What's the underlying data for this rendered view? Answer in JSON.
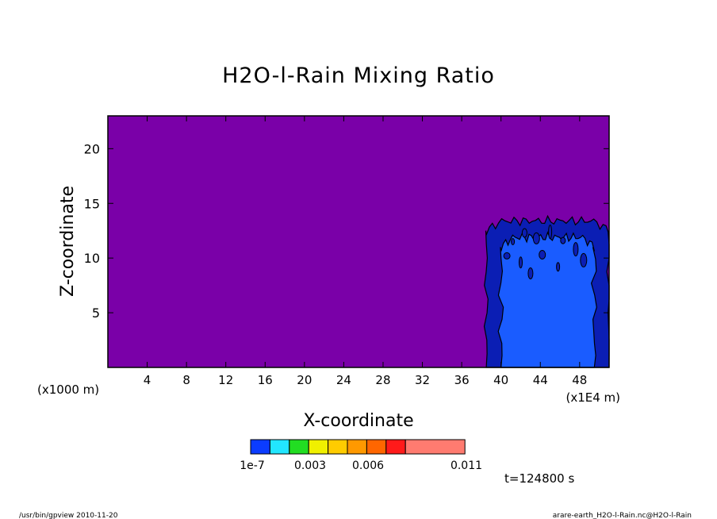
{
  "chart_data": {
    "type": "heatmap",
    "title": "H2O-l-Rain Mixing Ratio",
    "xlabel": "X-coordinate",
    "ylabel": "Z-coordinate",
    "x_unit_left": "(x1000 m)",
    "x_unit_right": "(x1E4 m)",
    "xlim": [
      0,
      51
    ],
    "ylim": [
      0,
      23
    ],
    "x_ticks": [
      4,
      8,
      12,
      16,
      20,
      24,
      28,
      32,
      36,
      40,
      44,
      48
    ],
    "y_ticks": [
      5,
      10,
      15,
      20
    ],
    "background_level": "below 1e-7",
    "colors": {
      "background": "#7a00a8",
      "outer_band": "#0b1eb4",
      "inner_band": "#1a5cff",
      "contour": "#000000"
    },
    "rain_region": {
      "x_range": [
        38.5,
        51
      ],
      "top_z": 13.5,
      "inner_x_range": [
        40.0,
        49.5
      ],
      "inner_top_z": 12.0
    },
    "colorbar": {
      "colors": [
        "#0b3cff",
        "#22e6ff",
        "#22dd22",
        "#f0f000",
        "#ffcc00",
        "#ff9900",
        "#ff6600",
        "#ff1a1a",
        "#ff7b70"
      ],
      "labels": [
        "1e-7",
        "0.003",
        "0.006",
        "0.011"
      ]
    },
    "time_label": "t=124800 s"
  },
  "footer": {
    "left": "/usr/bin/gpview  2010-11-20",
    "right": "arare-earth_H2O-l-Rain.nc@H2O-l-Rain"
  }
}
